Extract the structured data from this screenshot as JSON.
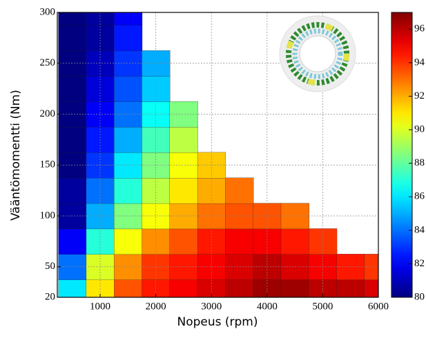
{
  "chart_data": {
    "type": "heatmap",
    "xlabel": "Nopeus (rpm)",
    "ylabel": "Vääntömomentti (Nm)",
    "x": [
      500,
      1000,
      1500,
      2000,
      2500,
      3000,
      3500,
      4000,
      4500,
      5000,
      5500,
      6000
    ],
    "y": [
      25,
      50,
      75,
      100,
      125,
      150,
      175,
      200,
      225,
      250,
      275,
      300
    ],
    "z": [
      [
        86,
        91,
        93.5,
        94.5,
        95,
        95.5,
        96,
        96.5,
        96.5,
        96,
        96,
        95.5
      ],
      [
        84,
        90,
        92.5,
        94,
        94.5,
        95,
        95.5,
        96,
        95.5,
        95,
        94.5,
        94
      ],
      [
        82,
        87,
        90.5,
        92.5,
        93.5,
        94.5,
        95,
        95,
        94.5,
        94,
        null,
        null
      ],
      [
        80.5,
        85,
        88.5,
        90.5,
        92,
        93,
        93.5,
        93.5,
        93,
        null,
        null,
        null
      ],
      [
        80.5,
        84,
        87,
        89.5,
        91,
        92,
        93,
        null,
        null,
        null,
        null,
        null
      ],
      [
        80,
        83,
        86,
        88.5,
        90.5,
        91.5,
        null,
        null,
        null,
        null,
        null,
        null
      ],
      [
        80,
        82.5,
        85,
        87.5,
        89.5,
        null,
        null,
        null,
        null,
        null,
        null,
        null
      ],
      [
        80,
        82,
        84,
        86.5,
        88.5,
        null,
        null,
        null,
        null,
        null,
        null,
        null
      ],
      [
        80,
        81.5,
        83.5,
        85.5,
        null,
        null,
        null,
        null,
        null,
        null,
        null,
        null
      ],
      [
        80,
        81,
        83,
        85,
        null,
        null,
        null,
        null,
        null,
        null,
        null,
        null
      ],
      [
        80,
        80.5,
        82.5,
        null,
        null,
        null,
        null,
        null,
        null,
        null,
        null,
        null
      ],
      [
        80,
        80.5,
        82,
        null,
        null,
        null,
        null,
        null,
        null,
        null,
        null,
        null
      ]
    ],
    "xlim": [
      230,
      6000
    ],
    "ylim": [
      20,
      300
    ],
    "xticks": [
      1000,
      2000,
      3000,
      4000,
      5000,
      6000
    ],
    "yticks": [
      20,
      50,
      100,
      150,
      200,
      250,
      300
    ],
    "colormap": "jet",
    "clim": [
      80,
      97
    ],
    "cticks": [
      80,
      82,
      84,
      86,
      88,
      90,
      92,
      94,
      96
    ],
    "grid": true
  }
}
